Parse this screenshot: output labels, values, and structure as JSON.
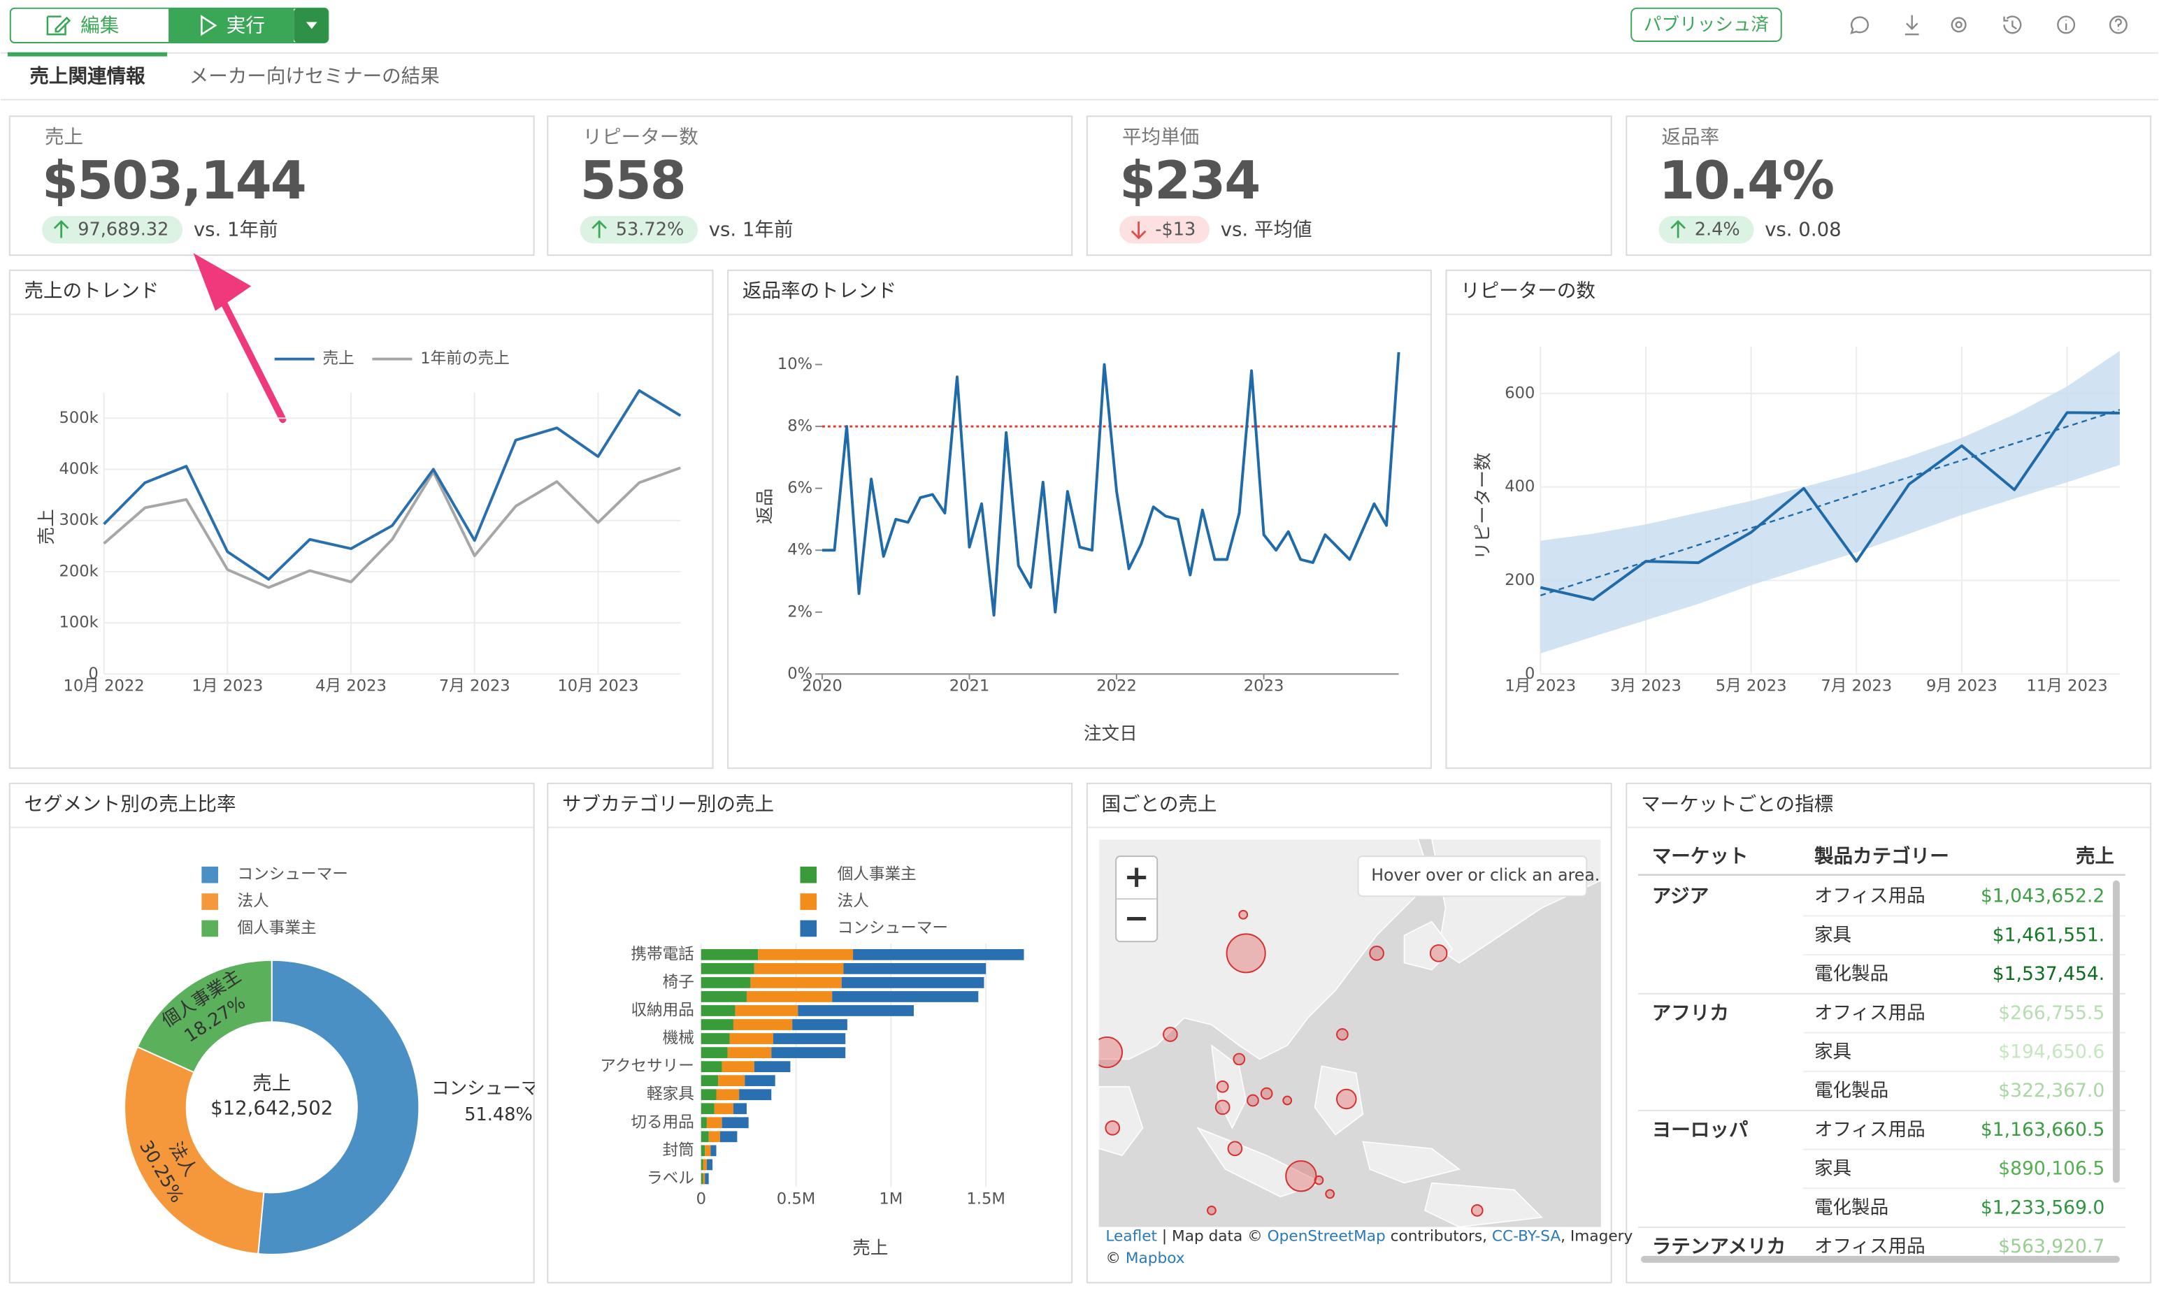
{
  "toolbar": {
    "edit": "編集",
    "run": "実行",
    "published": "パブリッシュ済"
  },
  "tabs": [
    "売上関連情報",
    "メーカー向けセミナーの結果"
  ],
  "kpis": [
    {
      "label": "売上",
      "value": "$503,144",
      "delta": "97,689.32",
      "compare": "vs. 1年前",
      "value_color": "#444444",
      "direction": "up"
    },
    {
      "label": "リピーター数",
      "value": "558",
      "delta": "53.72%",
      "compare": "vs. 1年前",
      "value_color": "#444444",
      "direction": "up"
    },
    {
      "label": "平均単価",
      "value": "$234",
      "delta": "-$13",
      "compare": "vs. 平均値",
      "value_color": "#6db33f",
      "direction": "down"
    },
    {
      "label": "返品率",
      "value": "10.4%",
      "delta": "2.4%",
      "compare": "vs. 0.08",
      "value_color": "#e04b4b",
      "direction": "up"
    }
  ],
  "sales_trend": {
    "chart_data": {
      "type": "line",
      "title": "売上のトレンド",
      "y_label": "売上",
      "categories": [
        "10月 2022",
        null,
        null,
        "1月 2023",
        null,
        null,
        "4月 2023",
        null,
        null,
        "7月 2023",
        null,
        null,
        "10月 2023",
        null,
        null
      ],
      "series": [
        {
          "name": "売上",
          "color": "#2a6fad",
          "values": [
            293000,
            374000,
            406000,
            239000,
            185000,
            263000,
            245000,
            290000,
            400000,
            261000,
            457000,
            481000,
            425000,
            554000,
            505000
          ]
        },
        {
          "name": "1年前の売上",
          "color": "#a6a6a6",
          "values": [
            255000,
            325000,
            341000,
            204000,
            169000,
            202000,
            180000,
            263000,
            395000,
            231000,
            328000,
            376000,
            296000,
            374000,
            403000
          ]
        }
      ],
      "ylim": [
        0,
        550000
      ],
      "yticks": [
        0,
        {
          "value": 100000,
          "label": "100k"
        },
        {
          "value": 200000,
          "label": "200k"
        },
        {
          "value": 300000,
          "label": "300k"
        },
        {
          "value": 400000,
          "label": "400k"
        },
        {
          "value": 500000,
          "label": "500k"
        }
      ],
      "grid": true,
      "legend": "top"
    }
  },
  "return_trend": {
    "chart_data": {
      "type": "line",
      "title": "返品率のトレンド",
      "x_label": "注文日",
      "y_label": "返品",
      "categories": [
        "2020",
        null,
        null,
        null,
        null,
        null,
        null,
        null,
        null,
        null,
        null,
        null,
        "2021",
        null,
        null,
        null,
        null,
        null,
        null,
        null,
        null,
        null,
        null,
        null,
        "2022",
        null,
        null,
        null,
        null,
        null,
        null,
        null,
        null,
        null,
        null,
        null,
        "2023",
        null,
        null,
        null,
        null,
        null,
        null,
        null,
        null,
        null,
        null,
        null
      ],
      "series": [
        {
          "color": "#1f6aa8",
          "values": [
            4.0,
            4.0,
            8.0,
            2.6,
            6.3,
            3.8,
            5.0,
            4.9,
            5.7,
            5.8,
            5.2,
            9.6,
            4.1,
            5.5,
            1.9,
            7.8,
            3.5,
            2.8,
            6.2,
            2.0,
            5.9,
            4.1,
            4.0,
            10.0,
            5.9,
            3.4,
            4.2,
            5.4,
            5.1,
            5.0,
            3.2,
            5.3,
            3.7,
            3.7,
            5.2,
            9.8,
            4.5,
            4.0,
            4.6,
            3.7,
            3.6,
            4.5,
            4.1,
            3.7,
            4.6,
            5.5,
            4.8,
            10.4
          ]
        }
      ],
      "ref_line": {
        "value": 8,
        "color": "#e03c31"
      },
      "ylim": [
        0,
        10.5
      ],
      "yticks": [
        {
          "value": 0,
          "label": "0%"
        },
        {
          "value": 2,
          "label": "2%"
        },
        {
          "value": 4,
          "label": "4%"
        },
        {
          "value": 6,
          "label": "6%"
        },
        {
          "value": 8,
          "label": "8%"
        },
        {
          "value": 10,
          "label": "10%"
        }
      ],
      "grid": false
    }
  },
  "repeater": {
    "chart_data": {
      "type": "line",
      "title": "リピーターの数",
      "y_label": "リピーター数",
      "categories": [
        "1月 2023",
        null,
        "3月 2023",
        null,
        "5月 2023",
        null,
        "7月 2023",
        null,
        "9月 2023",
        null,
        "11月 2023",
        null
      ],
      "series": [
        {
          "color": "#1f6aa8",
          "values": [
            185,
            159,
            241,
            238,
            303,
            397,
            241,
            406,
            488,
            394,
            559,
            558
          ],
          "trend": [
            168,
            204,
            240,
            276,
            312,
            348,
            385,
            421,
            457,
            493,
            529,
            565
          ],
          "band_upper": [
            285,
            300,
            320,
            345,
            370,
            400,
            430,
            465,
            505,
            555,
            615,
            691
          ],
          "band_lower": [
            44,
            80,
            115,
            150,
            190,
            225,
            260,
            300,
            340,
            375,
            410,
            447
          ],
          "band_color": "#c9ddf0"
        }
      ],
      "ylim": [
        0,
        700
      ],
      "yticks": [
        0,
        200,
        400,
        600
      ],
      "grid": true
    }
  },
  "segment": {
    "chart_data": {
      "type": "pie",
      "title": "セグメント別の売上比率",
      "center_label": "売上",
      "center_value": "$12,642,502",
      "categories": [
        "コンシューマー",
        "法人",
        "個人事業主"
      ],
      "values": [
        51.48,
        30.25,
        18.27
      ],
      "value_labels": [
        "51.48%",
        "30.25%",
        "18.27%"
      ],
      "colors": [
        "#4a90c4",
        "#f5973b",
        "#5bb05b"
      ],
      "legend": "top"
    }
  },
  "subcategory": {
    "chart_data": {
      "type": "bar",
      "orientation": "horizontal",
      "stacked": true,
      "title": "サブカテゴリー別の売上",
      "x_label": "売上",
      "categories": [
        "携帯電話",
        null,
        "椅子",
        null,
        "収納用品",
        null,
        "機械",
        null,
        "アクセサリー",
        null,
        "軽家具",
        null,
        "切る用品",
        null,
        "封筒",
        null,
        "ラベル"
      ],
      "series": [
        {
          "name": "個人事業主",
          "color": "#3a9b3a",
          "values": [
            0.3,
            0.28,
            0.26,
            0.24,
            0.18,
            0.17,
            0.15,
            0.14,
            0.11,
            0.09,
            0.08,
            0.07,
            0.03,
            0.04,
            0.02,
            0.01,
            0.01
          ]
        },
        {
          "name": "法人",
          "color": "#f28c1b",
          "values": [
            0.5,
            0.47,
            0.48,
            0.45,
            0.33,
            0.31,
            0.23,
            0.23,
            0.17,
            0.14,
            0.12,
            0.1,
            0.08,
            0.06,
            0.03,
            0.02,
            0.01
          ]
        },
        {
          "name": "コンシューマー",
          "color": "#2a70b0",
          "values": [
            0.9,
            0.75,
            0.75,
            0.77,
            0.61,
            0.29,
            0.38,
            0.39,
            0.19,
            0.16,
            0.17,
            0.07,
            0.14,
            0.09,
            0.03,
            0.03,
            0.02
          ]
        }
      ],
      "xlim": [
        0,
        1.75
      ],
      "xticks": [
        0,
        {
          "value": 0.5,
          "label": "0.5M"
        },
        {
          "value": 1,
          "label": "1M"
        },
        {
          "value": 1.5,
          "label": "1.5M"
        }
      ],
      "grid": true,
      "legend": "top"
    }
  },
  "map": {
    "title": "国ごとの売上",
    "zoom_in": "+",
    "zoom_out": "−",
    "info": "Hover over or click an area.",
    "attribution": [
      "Leaflet",
      " | Map data © ",
      "OpenStreetMap",
      " contributors, ",
      "CC-BY-SA",
      ", Imagery",
      "© ",
      "Mapbox"
    ]
  },
  "market_table": {
    "title": "マーケットごとの指標",
    "columns": [
      "マーケット",
      "製品カテゴリー",
      "売上"
    ],
    "groups": [
      {
        "market": "アジア",
        "rows": [
          {
            "category": "オフィス用品",
            "sales": "$1,043,652.2",
            "color": "#3d9f45"
          },
          {
            "category": "家具",
            "sales": "$1,461,551.",
            "color": "#157a27"
          },
          {
            "category": "電化製品",
            "sales": "$1,537,454.",
            "color": "#0e6b20"
          }
        ]
      },
      {
        "market": "アフリカ",
        "rows": [
          {
            "category": "オフィス用品",
            "sales": "$266,755.5",
            "color": "#b7ddb2"
          },
          {
            "category": "家具",
            "sales": "$194,650.6",
            "color": "#c6e5c1"
          },
          {
            "category": "電化製品",
            "sales": "$322,367.0",
            "color": "#aad6a4"
          }
        ]
      },
      {
        "market": "ヨーロッパ",
        "rows": [
          {
            "category": "オフィス用品",
            "sales": "$1,163,660.5",
            "color": "#3a9c43"
          },
          {
            "category": "家具",
            "sales": "$890,106.5",
            "color": "#55ae52"
          },
          {
            "category": "電化製品",
            "sales": "$1,233,569.0",
            "color": "#2e9540"
          }
        ]
      },
      {
        "market": "ラテンアメリカ",
        "rows": [
          {
            "category": "オフィス用品",
            "sales": "$563,920.7",
            "color": "#98cf92"
          }
        ]
      }
    ]
  }
}
